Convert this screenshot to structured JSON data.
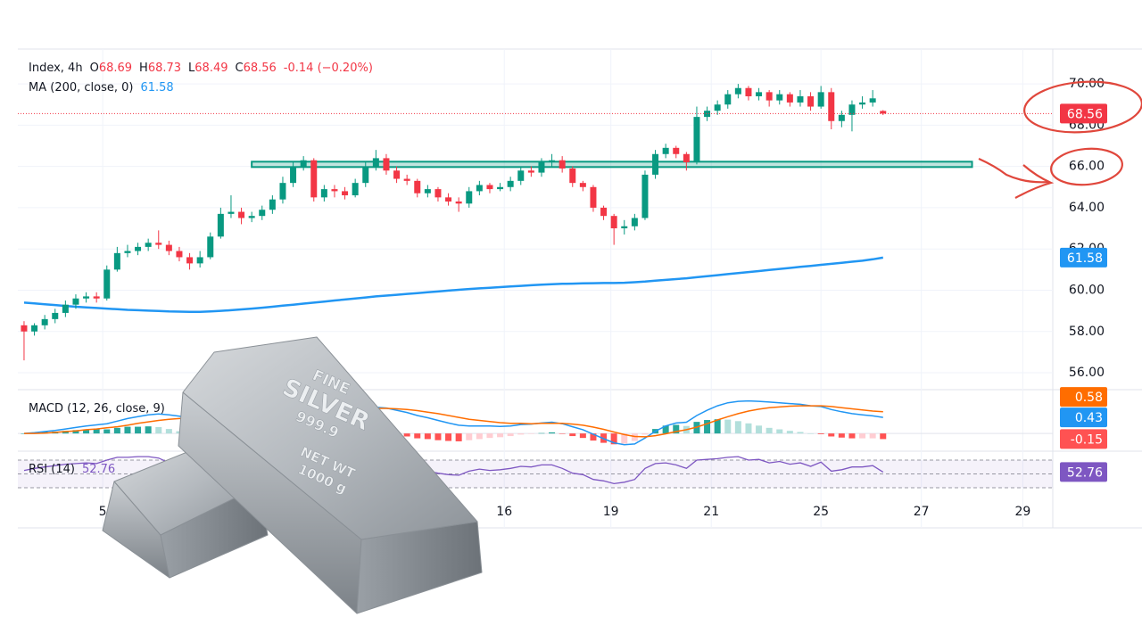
{
  "chart_data": [
    {
      "type": "candlestick",
      "legend_ohlc": [
        "O",
        "H",
        "L",
        "C"
      ],
      "change_label": "-0.14 (−0.20%)",
      "xlim": [
        -0.6,
        99.4
      ],
      "xticks": [
        {
          "value": 7.6,
          "label": "5"
        },
        {
          "value": 46.4,
          "label": "16"
        },
        {
          "value": 56.7,
          "label": "19"
        },
        {
          "value": 66.4,
          "label": "21"
        },
        {
          "value": 77,
          "label": "25"
        },
        {
          "value": 86.7,
          "label": "27"
        },
        {
          "value": 96.5,
          "label": "29"
        }
      ],
      "ylim": [
        55.18,
        71.69
      ],
      "yticks": [
        {
          "value": 56,
          "label": "56.00"
        },
        {
          "value": 58,
          "label": "58.00"
        },
        {
          "value": 60,
          "label": "60.00"
        },
        {
          "value": 62,
          "label": "62.00"
        },
        {
          "value": 64,
          "label": "64.00"
        },
        {
          "value": 66,
          "label": "66.00"
        },
        {
          "value": 68,
          "label": "68.00"
        },
        {
          "value": 70,
          "label": "70.00"
        }
      ],
      "grid": true,
      "resistance": {
        "value": 66.1,
        "x": [
          22,
          91.6
        ],
        "color": "#089981"
      },
      "series": [
        {
          "name": "Index, 4h",
          "up_color": "#089981",
          "down_color": "#f23645",
          "values": [
            [
              58.3,
              58.5,
              56.6,
              58.0
            ],
            [
              58.0,
              58.4,
              57.8,
              58.3
            ],
            [
              58.3,
              58.8,
              58.1,
              58.6
            ],
            [
              58.6,
              59.1,
              58.4,
              58.9
            ],
            [
              58.9,
              59.5,
              58.7,
              59.3
            ],
            [
              59.3,
              59.8,
              59.1,
              59.6
            ],
            [
              59.6,
              59.9,
              59.4,
              59.7
            ],
            [
              59.7,
              59.9,
              59.4,
              59.6
            ],
            [
              59.6,
              61.2,
              59.5,
              61.0
            ],
            [
              61.0,
              62.1,
              60.9,
              61.8
            ],
            [
              61.8,
              62.2,
              61.6,
              61.9
            ],
            [
              61.9,
              62.3,
              61.7,
              62.1
            ],
            [
              62.1,
              62.5,
              61.9,
              62.3
            ],
            [
              62.3,
              62.9,
              62.0,
              62.2
            ],
            [
              62.2,
              62.4,
              61.7,
              61.9
            ],
            [
              61.9,
              62.1,
              61.4,
              61.6
            ],
            [
              61.6,
              61.8,
              61.0,
              61.3
            ],
            [
              61.3,
              61.9,
              61.1,
              61.6
            ],
            [
              61.6,
              62.8,
              61.5,
              62.6
            ],
            [
              62.6,
              64.0,
              62.5,
              63.7
            ],
            [
              63.7,
              64.6,
              63.5,
              63.8
            ],
            [
              63.8,
              64.0,
              63.2,
              63.5
            ],
            [
              63.5,
              63.8,
              63.3,
              63.6
            ],
            [
              63.6,
              64.1,
              63.4,
              63.9
            ],
            [
              63.9,
              64.6,
              63.7,
              64.4
            ],
            [
              64.4,
              65.5,
              64.2,
              65.2
            ],
            [
              65.2,
              66.2,
              65.0,
              66.0
            ],
            [
              66.0,
              66.5,
              65.8,
              66.3
            ],
            [
              66.3,
              66.4,
              64.3,
              64.5
            ],
            [
              64.5,
              65.1,
              64.3,
              64.9
            ],
            [
              64.9,
              65.1,
              64.5,
              64.8
            ],
            [
              64.8,
              65.0,
              64.4,
              64.6
            ],
            [
              64.6,
              65.4,
              64.5,
              65.2
            ],
            [
              65.2,
              66.2,
              65.0,
              66.0
            ],
            [
              66.0,
              66.8,
              65.8,
              66.4
            ],
            [
              66.4,
              66.6,
              65.6,
              65.8
            ],
            [
              65.8,
              66.0,
              65.2,
              65.4
            ],
            [
              65.4,
              65.6,
              65.1,
              65.3
            ],
            [
              65.3,
              65.4,
              64.5,
              64.7
            ],
            [
              64.7,
              65.1,
              64.5,
              64.9
            ],
            [
              64.9,
              65.0,
              64.3,
              64.5
            ],
            [
              64.5,
              64.7,
              64.1,
              64.3
            ],
            [
              64.3,
              64.5,
              63.8,
              64.2
            ],
            [
              64.2,
              65.0,
              64.0,
              64.8
            ],
            [
              64.8,
              65.3,
              64.6,
              65.1
            ],
            [
              65.1,
              65.2,
              64.7,
              64.9
            ],
            [
              64.9,
              65.2,
              64.8,
              65.0
            ],
            [
              65.0,
              65.5,
              64.8,
              65.3
            ],
            [
              65.3,
              66.0,
              65.1,
              65.8
            ],
            [
              65.8,
              66.0,
              65.5,
              65.7
            ],
            [
              65.7,
              66.4,
              65.5,
              66.2
            ],
            [
              66.2,
              66.6,
              66.0,
              66.3
            ],
            [
              66.3,
              66.5,
              65.7,
              65.9
            ],
            [
              65.9,
              66.0,
              65.0,
              65.2
            ],
            [
              65.2,
              65.3,
              64.8,
              65.0
            ],
            [
              65.0,
              65.1,
              63.8,
              64.0
            ],
            [
              64.0,
              64.1,
              63.4,
              63.6
            ],
            [
              63.6,
              63.7,
              62.2,
              63.0
            ],
            [
              63.0,
              63.4,
              62.7,
              63.1
            ],
            [
              63.1,
              63.7,
              62.9,
              63.5
            ],
            [
              63.5,
              65.8,
              63.4,
              65.6
            ],
            [
              65.6,
              66.8,
              65.4,
              66.6
            ],
            [
              66.6,
              67.1,
              66.4,
              66.9
            ],
            [
              66.9,
              67.0,
              66.4,
              66.6
            ],
            [
              66.6,
              66.7,
              65.8,
              66.2
            ],
            [
              66.2,
              68.9,
              66.1,
              68.4
            ],
            [
              68.4,
              68.9,
              68.2,
              68.7
            ],
            [
              68.7,
              69.2,
              68.5,
              69.0
            ],
            [
              69.0,
              69.7,
              68.8,
              69.5
            ],
            [
              69.5,
              70.0,
              69.3,
              69.8
            ],
            [
              69.8,
              69.9,
              69.2,
              69.4
            ],
            [
              69.4,
              69.8,
              69.2,
              69.6
            ],
            [
              69.6,
              69.7,
              68.9,
              69.2
            ],
            [
              69.2,
              69.7,
              69.0,
              69.5
            ],
            [
              69.5,
              69.6,
              68.9,
              69.1
            ],
            [
              69.1,
              69.7,
              68.9,
              69.4
            ],
            [
              69.4,
              69.6,
              68.7,
              68.9
            ],
            [
              68.9,
              69.9,
              68.8,
              69.6
            ],
            [
              69.6,
              69.8,
              67.8,
              68.2
            ],
            [
              68.2,
              68.7,
              67.9,
              68.5
            ],
            [
              68.5,
              69.2,
              67.7,
              69.0
            ],
            [
              69.0,
              69.4,
              68.8,
              69.1
            ],
            [
              69.1,
              69.7,
              68.9,
              69.3
            ],
            [
              68.69,
              68.73,
              68.49,
              68.56
            ]
          ]
        },
        {
          "name": "MA (200, close, 0)",
          "color": "#2196f3",
          "values": [
            59.4,
            59.36,
            59.32,
            59.28,
            59.24,
            59.2,
            59.17,
            59.14,
            59.11,
            59.08,
            59.05,
            59.03,
            59.01,
            58.99,
            58.97,
            58.96,
            58.95,
            58.95,
            58.97,
            59.0,
            59.03,
            59.07,
            59.11,
            59.15,
            59.2,
            59.25,
            59.3,
            59.35,
            59.4,
            59.45,
            59.5,
            59.55,
            59.6,
            59.65,
            59.7,
            59.74,
            59.78,
            59.82,
            59.86,
            59.9,
            59.94,
            59.98,
            60.02,
            60.06,
            60.09,
            60.12,
            60.15,
            60.18,
            60.21,
            60.24,
            60.27,
            60.29,
            60.31,
            60.32,
            60.33,
            60.34,
            60.35,
            60.35,
            60.36,
            60.39,
            60.42,
            60.46,
            60.5,
            60.54,
            60.58,
            60.63,
            60.68,
            60.73,
            60.78,
            60.83,
            60.88,
            60.93,
            60.98,
            61.03,
            61.08,
            61.13,
            61.18,
            61.23,
            61.28,
            61.33,
            61.38,
            61.43,
            61.5,
            61.58
          ]
        }
      ]
    },
    {
      "type": "macd",
      "title": "MACD (12, 26, close, 9)",
      "ylim": [
        -0.45,
        1.1
      ],
      "series": [
        {
          "kind": "histogram",
          "colors": [
            "#26a69a",
            "#b2dfdb",
            "#ffcdd2",
            "#ff5252"
          ],
          "values": [
            0.0,
            0.02,
            0.04,
            0.05,
            0.07,
            0.09,
            0.1,
            0.11,
            0.11,
            0.15,
            0.18,
            0.18,
            0.19,
            0.17,
            0.12,
            0.06,
            0.01,
            -0.02,
            0.02,
            0.1,
            0.14,
            0.13,
            0.11,
            0.11,
            0.11,
            0.14,
            0.18,
            0.19,
            0.07,
            0.01,
            -0.04,
            -0.08,
            -0.06,
            -0.01,
            0.03,
            0.01,
            -0.04,
            -0.08,
            -0.13,
            -0.15,
            -0.18,
            -0.2,
            -0.21,
            -0.18,
            -0.15,
            -0.12,
            -0.1,
            -0.07,
            -0.03,
            -0.01,
            0.01,
            0.03,
            -0.01,
            -0.07,
            -0.12,
            -0.19,
            -0.25,
            -0.29,
            -0.27,
            -0.2,
            -0.03,
            0.12,
            0.21,
            0.23,
            0.2,
            0.31,
            0.36,
            0.38,
            0.37,
            0.33,
            0.27,
            0.21,
            0.15,
            0.11,
            0.07,
            0.04,
            0.0,
            -0.02,
            -0.08,
            -0.11,
            -0.13,
            -0.13,
            -0.13,
            -0.15
          ]
        },
        {
          "kind": "line",
          "color": "#2196f3",
          "values": [
            0.0,
            0.02,
            0.05,
            0.08,
            0.12,
            0.16,
            0.2,
            0.23,
            0.26,
            0.33,
            0.4,
            0.45,
            0.5,
            0.52,
            0.5,
            0.46,
            0.41,
            0.38,
            0.42,
            0.52,
            0.6,
            0.62,
            0.63,
            0.65,
            0.68,
            0.74,
            0.82,
            0.88,
            0.78,
            0.72,
            0.66,
            0.6,
            0.6,
            0.65,
            0.7,
            0.68,
            0.62,
            0.56,
            0.48,
            0.42,
            0.35,
            0.28,
            0.22,
            0.2,
            0.2,
            0.2,
            0.19,
            0.2,
            0.24,
            0.25,
            0.28,
            0.3,
            0.26,
            0.18,
            0.1,
            -0.02,
            -0.14,
            -0.25,
            -0.3,
            -0.28,
            -0.12,
            0.06,
            0.2,
            0.28,
            0.3,
            0.48,
            0.62,
            0.74,
            0.82,
            0.86,
            0.87,
            0.86,
            0.84,
            0.82,
            0.8,
            0.78,
            0.74,
            0.72,
            0.64,
            0.58,
            0.53,
            0.5,
            0.47,
            0.43
          ]
        },
        {
          "kind": "line",
          "color": "#ff6d00",
          "values": [
            0.0,
            0.0,
            0.01,
            0.03,
            0.05,
            0.07,
            0.1,
            0.12,
            0.15,
            0.18,
            0.22,
            0.27,
            0.31,
            0.35,
            0.38,
            0.4,
            0.4,
            0.4,
            0.4,
            0.42,
            0.46,
            0.49,
            0.52,
            0.54,
            0.57,
            0.6,
            0.64,
            0.69,
            0.71,
            0.71,
            0.7,
            0.68,
            0.66,
            0.66,
            0.67,
            0.67,
            0.66,
            0.64,
            0.61,
            0.57,
            0.53,
            0.48,
            0.43,
            0.38,
            0.35,
            0.32,
            0.29,
            0.27,
            0.27,
            0.26,
            0.27,
            0.27,
            0.27,
            0.25,
            0.22,
            0.17,
            0.11,
            0.04,
            -0.03,
            -0.08,
            -0.09,
            -0.06,
            -0.01,
            0.05,
            0.1,
            0.17,
            0.26,
            0.36,
            0.45,
            0.53,
            0.6,
            0.65,
            0.69,
            0.71,
            0.73,
            0.74,
            0.74,
            0.74,
            0.72,
            0.69,
            0.66,
            0.63,
            0.6,
            0.58
          ]
        }
      ]
    },
    {
      "type": "line",
      "title": "RSI (14)",
      "color": "#7e57c2",
      "ylim": [
        18.4,
        80.3
      ],
      "levels": [
        30,
        50,
        70
      ],
      "values": [
        55,
        58,
        60,
        62,
        64,
        65,
        66,
        65,
        70,
        74,
        74,
        75,
        75,
        73,
        66,
        62,
        58,
        62,
        68,
        74,
        74,
        70,
        71,
        72,
        74,
        77,
        79,
        79,
        58,
        60,
        59,
        57,
        62,
        67,
        69,
        62,
        58,
        57,
        52,
        54,
        51,
        49,
        48,
        54,
        57,
        55,
        56,
        58,
        61,
        60,
        63,
        63,
        58,
        51,
        49,
        42,
        40,
        36,
        38,
        42,
        58,
        65,
        66,
        63,
        58,
        70,
        71,
        72,
        74,
        75,
        70,
        71,
        66,
        68,
        64,
        66,
        61,
        67,
        54,
        56,
        60,
        60,
        62,
        52.76
      ]
    }
  ],
  "overlay_image": {
    "lines": [
      "FINE",
      "SILVER",
      "999.9",
      "NET WT",
      "1000 g"
    ]
  }
}
